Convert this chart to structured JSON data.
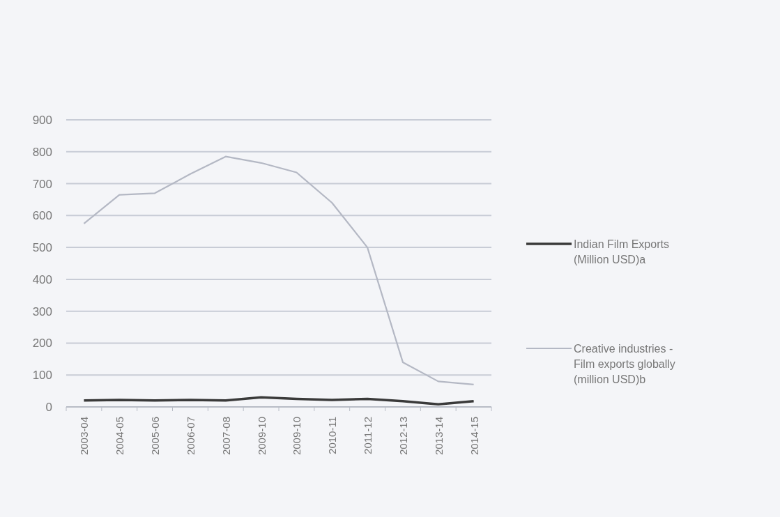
{
  "chart_data": {
    "type": "line",
    "categories": [
      "2003-04",
      "2004-05",
      "2005-06",
      "2006-07",
      "2007-08",
      "2009-10",
      "2009-10",
      "2010-11",
      "2011-12",
      "2012-13",
      "2013-14",
      "2014-15"
    ],
    "series": [
      {
        "name": "Indian Film Exports (Million USD)a",
        "color": "#3a3a3a",
        "values": [
          20,
          22,
          20,
          22,
          20,
          30,
          25,
          22,
          25,
          18,
          8,
          18
        ]
      },
      {
        "name": "Creative industries - Film exports globally (million USD)b",
        "color": "#b4b8c4",
        "values": [
          575,
          665,
          670,
          730,
          785,
          765,
          735,
          640,
          500,
          140,
          80,
          70
        ]
      }
    ],
    "ylim": [
      0,
      900
    ],
    "yticks": [
      0,
      100,
      200,
      300,
      400,
      500,
      600,
      700,
      800,
      900
    ],
    "grid": "y",
    "legend": "right",
    "marker": "none",
    "line_style": "solid"
  }
}
